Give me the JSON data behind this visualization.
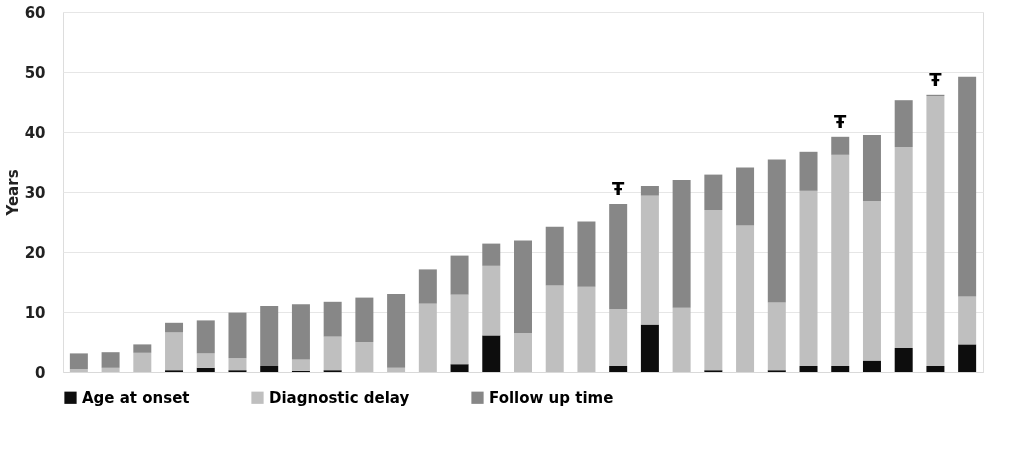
{
  "chart_data": {
    "type": "bar",
    "stacked": true,
    "ylabel": "Years",
    "categories": [
      null,
      null,
      null,
      null,
      null,
      null,
      null,
      null,
      null,
      null,
      null,
      null,
      null,
      null,
      null,
      null,
      null,
      null,
      null,
      null,
      null,
      null,
      null,
      null,
      null,
      null,
      null,
      null,
      null
    ],
    "series": [
      {
        "name": "Age at onset",
        "color": "#0d0d0d",
        "values": [
          0,
          0,
          0,
          0.3,
          0.7,
          0.3,
          1.0,
          0.2,
          0.3,
          0,
          0,
          0,
          1.3,
          6.1,
          0,
          0,
          0,
          1.0,
          7.9,
          0,
          0.3,
          0,
          0.3,
          1.0,
          1.0,
          1.9,
          4.0,
          1.0,
          4.6
        ]
      },
      {
        "name": "Diagnostic delay",
        "color": "#bfbfbf",
        "values": [
          0.5,
          0.7,
          3.2,
          6.3,
          2.4,
          2.0,
          0,
          1.9,
          5.6,
          5.0,
          0.7,
          11.4,
          11.6,
          11.6,
          6.5,
          14.4,
          14.2,
          9.5,
          21.5,
          10.7,
          26.7,
          24.4,
          11.3,
          29.2,
          35.2,
          26.6,
          33.5,
          45.0,
          8.0
        ]
      },
      {
        "name": "Follow up time",
        "color": "#878787",
        "values": [
          2.6,
          2.6,
          1.4,
          1.6,
          5.5,
          7.6,
          10.0,
          9.2,
          5.8,
          7.4,
          12.3,
          5.7,
          6.5,
          3.7,
          15.4,
          9.8,
          10.9,
          17.5,
          1.6,
          21.3,
          5.9,
          9.7,
          23.8,
          6.5,
          3.0,
          11.0,
          7.8,
          0.2,
          36.6
        ],
        "value_labels": [
          null,
          null,
          null,
          null,
          null,
          null,
          null,
          null,
          null,
          null,
          null,
          null,
          null,
          null,
          null,
          null,
          null,
          "Ŧ",
          null,
          null,
          null,
          null,
          null,
          null,
          "Ŧ",
          null,
          null,
          "Ŧ",
          null
        ]
      }
    ],
    "ylim": [
      0,
      60
    ],
    "yticks": [
      0,
      10,
      20,
      30,
      40,
      50,
      60
    ],
    "grid": "y",
    "legend": "bottom",
    "tick_labels": "y"
  }
}
